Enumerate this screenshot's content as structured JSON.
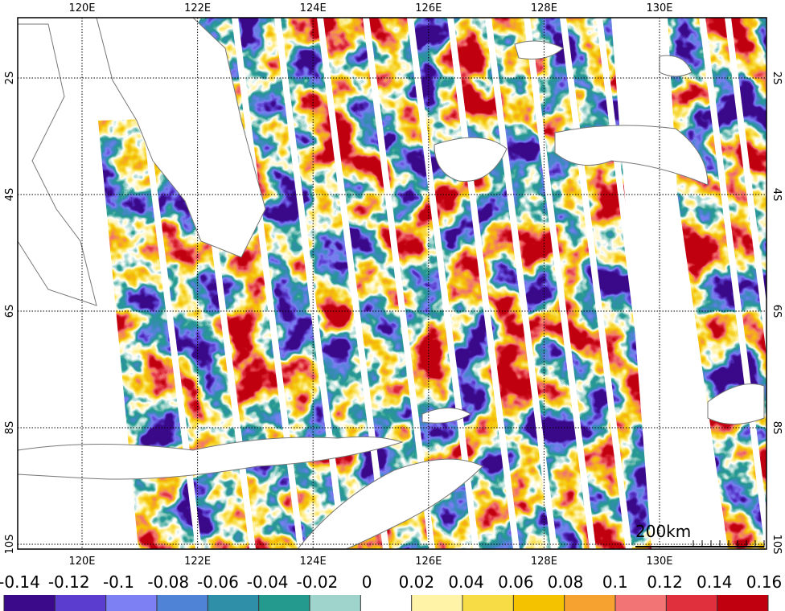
{
  "map": {
    "top_lon_labels": [
      "120E",
      "122E",
      "124E",
      "126E",
      "128E",
      "130E"
    ],
    "bottom_lon_labels": [
      "120E",
      "122E",
      "124E",
      "126E",
      "128E",
      "130E"
    ],
    "left_lat_labels": [
      "2S",
      "4S",
      "6S",
      "8S",
      "10S"
    ],
    "right_lat_labels": [
      "2S",
      "4S",
      "6S",
      "8S",
      "10S"
    ],
    "scale_bar": "200km"
  },
  "colorbar": {
    "ticks": [
      -0.14,
      -0.12,
      -0.1,
      -0.08,
      -0.06,
      -0.04,
      -0.02,
      0,
      0.02,
      0.04,
      0.06,
      0.08,
      0.1,
      0.12,
      0.14,
      0.16
    ],
    "colors": [
      "#3a0a8a",
      "#5b3dd0",
      "#7d80f2",
      "#4f83d6",
      "#2f8ea8",
      "#249a8e",
      "#9fd4cc",
      "#ffffff",
      "#fff3a8",
      "#f8dc45",
      "#f5c200",
      "#f5a230",
      "#f27474",
      "#e0303e",
      "#c0000e"
    ]
  }
}
